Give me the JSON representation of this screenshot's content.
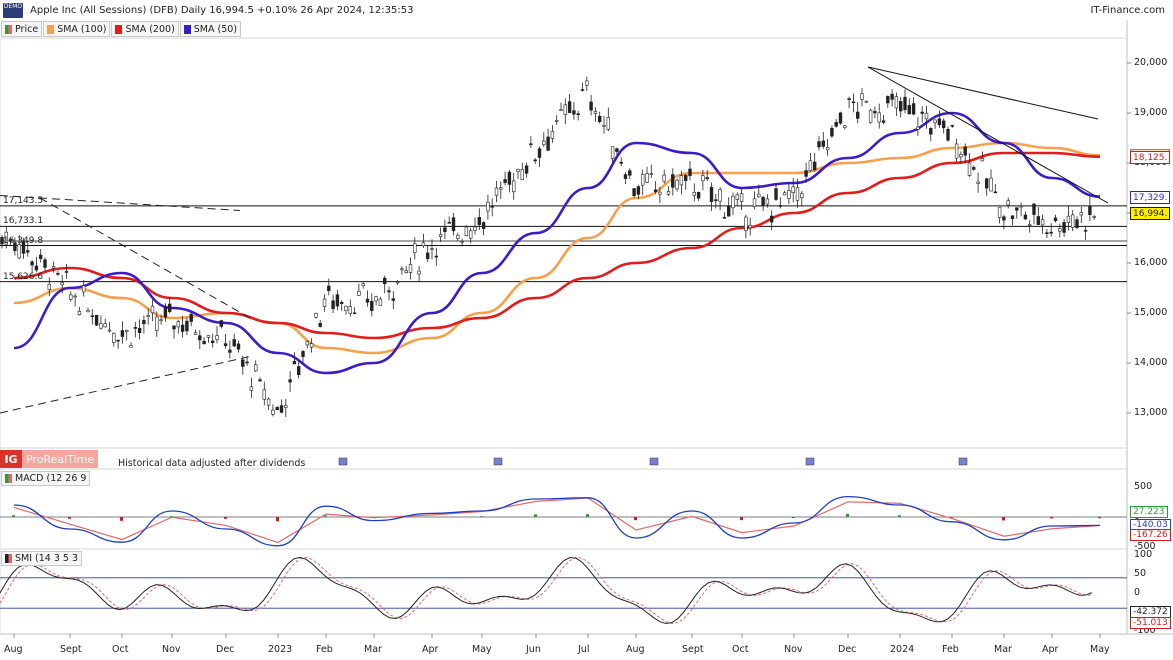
{
  "header": {
    "title": "Apple Inc (All Sessions) (DFB) Daily 16,994.5 +0.10% 26 Apr 2024, 12:35:53",
    "brand": "IT-Finance.com",
    "logo_text": "DEMO"
  },
  "legend": [
    {
      "label": "Price",
      "color": "#43a047"
    },
    {
      "label": "SMA (100)",
      "color": "#f7a04b"
    },
    {
      "label": "SMA (200)",
      "color": "#e21b1b"
    },
    {
      "label": "SMA (50)",
      "color": "#3d1bc8"
    }
  ],
  "branding": {
    "badge": "IG",
    "name": "ProRealTime"
  },
  "note": "Historical data adjusted after dividends",
  "x_axis": [
    "Aug",
    "Sept",
    "Oct",
    "Nov",
    "Dec",
    "2023",
    "Feb",
    "Mar",
    "Apr",
    "May",
    "Jun",
    "Jul",
    "Aug",
    "Sept",
    "Oct",
    "Nov",
    "Dec",
    "2024",
    "Feb",
    "Mar",
    "Apr",
    "May"
  ],
  "price_axis": [
    "20,000",
    "19,000",
    "18,000",
    "17,000",
    "16,000",
    "15,000",
    "14,000",
    "13,000"
  ],
  "levels": [
    {
      "label": "17,143.5",
      "value": 17143.5
    },
    {
      "label": "16,733.1",
      "value": 16733.1
    },
    {
      "label": "16,349.8",
      "value": 16349.8
    },
    {
      "label": "15,626.6",
      "value": 15626.6
    }
  ],
  "right_tags": [
    {
      "label": "18,153",
      "value": 18153,
      "bg": "#fcd9b8",
      "fg": "#d5731d"
    },
    {
      "label": "18,125",
      "value": 18125,
      "bg": "#ffffff",
      "fg": "#d41a1a"
    },
    {
      "label": "17,329",
      "value": 17329,
      "bg": "#ffffff",
      "fg": "#3d1bc8"
    },
    {
      "label": "16,994",
      "value": 16994,
      "bg": "#ffee00",
      "fg": "#222222"
    }
  ],
  "macd": {
    "title": "MACD (12 26 9",
    "axis": [
      "500",
      "0",
      "-500"
    ],
    "tags": [
      {
        "label": "27.223",
        "fg": "#2e9a3a"
      },
      {
        "label": "-140.03",
        "fg": "#1d3fc4"
      },
      {
        "label": "-167.26",
        "fg": "#d41a1a"
      }
    ]
  },
  "smi": {
    "title": "SMI (14 3 5 3",
    "axis": [
      "100",
      "50",
      "0",
      "-50",
      "-100"
    ],
    "tags": [
      {
        "label": "-42.372",
        "fg": "#222222"
      },
      {
        "label": "-51.013",
        "fg": "#d41a1a"
      }
    ]
  },
  "chart_data": {
    "type": "line",
    "title": "Apple Inc (All Sessions) (DFB) Daily",
    "x": [
      "Aug",
      "Sept",
      "Oct",
      "Nov",
      "Dec",
      "2023",
      "Feb",
      "Mar",
      "Apr",
      "May",
      "Jun",
      "Jul",
      "Aug",
      "Sept",
      "Oct",
      "Nov",
      "Dec",
      "2024",
      "Feb",
      "Mar",
      "Apr",
      "May"
    ],
    "ylim": [
      12300,
      20500
    ],
    "series": [
      {
        "name": "Price",
        "values": [
          16500,
          15400,
          14600,
          14900,
          14500,
          13000,
          15300,
          15200,
          16400,
          16900,
          18300,
          19400,
          17500,
          17600,
          17000,
          17300,
          19100,
          19100,
          18600,
          17100,
          16800,
          16994
        ]
      },
      {
        "name": "SMA (100)",
        "values": [
          15200,
          15500,
          15300,
          14900,
          15000,
          14800,
          14300,
          14200,
          14500,
          15000,
          15700,
          16500,
          17300,
          17800,
          17800,
          17800,
          18000,
          18100,
          18300,
          18400,
          18300,
          18153
        ]
      },
      {
        "name": "SMA (200)",
        "values": [
          15700,
          15900,
          15700,
          15300,
          15000,
          14800,
          14600,
          14500,
          14700,
          14900,
          15300,
          15700,
          16000,
          16300,
          16700,
          17000,
          17400,
          17700,
          18000,
          18200,
          18200,
          18125
        ]
      },
      {
        "name": "SMA (50)",
        "values": [
          14300,
          15500,
          15800,
          15100,
          14800,
          14200,
          13800,
          14000,
          15000,
          15800,
          16600,
          17500,
          18400,
          18200,
          17500,
          17600,
          18100,
          18600,
          19000,
          18400,
          17700,
          17329
        ]
      }
    ]
  }
}
